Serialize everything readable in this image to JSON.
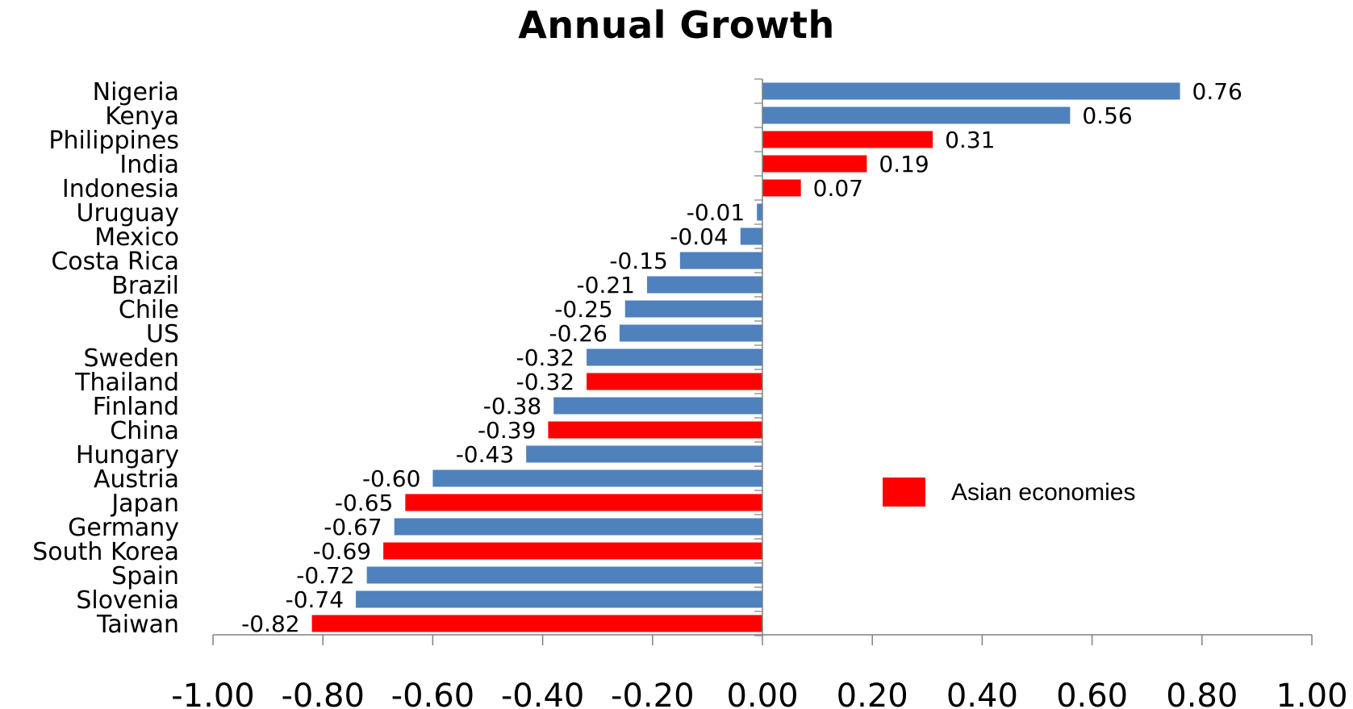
{
  "chart_data": {
    "type": "bar",
    "orientation": "horizontal",
    "title": "Annual Growth",
    "xlabel": "",
    "ylabel": "",
    "xlim": [
      -1.0,
      1.0
    ],
    "xticks": [
      "-1.00",
      "-0.80",
      "-0.60",
      "-0.40",
      "-0.20",
      "0.00",
      "0.20",
      "0.40",
      "0.60",
      "0.80",
      "1.00"
    ],
    "xtick_values": [
      -1.0,
      -0.8,
      -0.6,
      -0.4,
      -0.2,
      0.0,
      0.2,
      0.4,
      0.6,
      0.8,
      1.0
    ],
    "grid": false,
    "categories": [
      "Nigeria",
      "Kenya",
      "Philippines",
      "India",
      "Indonesia",
      "Uruguay",
      "Mexico",
      "Costa Rica",
      "Brazil",
      "Chile",
      "US",
      "Sweden",
      "Thailand",
      "Finland",
      "China",
      "Hungary",
      "Austria",
      "Japan",
      "Germany",
      "South Korea",
      "Spain",
      "Slovenia",
      "Taiwan"
    ],
    "values": [
      0.76,
      0.56,
      0.31,
      0.19,
      0.07,
      -0.01,
      -0.04,
      -0.15,
      -0.21,
      -0.25,
      -0.26,
      -0.32,
      -0.32,
      -0.38,
      -0.39,
      -0.43,
      -0.6,
      -0.65,
      -0.67,
      -0.69,
      -0.72,
      -0.74,
      -0.82
    ],
    "value_labels": [
      "0.76",
      "0.56",
      "0.31",
      "0.19",
      "0.07",
      "-0.01",
      "-0.04",
      "-0.15",
      "-0.21",
      "-0.25",
      "-0.26",
      "-0.32",
      "-0.32",
      "-0.38",
      "-0.39",
      "-0.43",
      "-0.60",
      "-0.65",
      "-0.67",
      "-0.69",
      "-0.72",
      "-0.74",
      "-0.82"
    ],
    "asian": [
      false,
      false,
      true,
      true,
      true,
      false,
      false,
      false,
      false,
      false,
      false,
      false,
      true,
      false,
      true,
      false,
      false,
      true,
      false,
      true,
      false,
      false,
      true
    ],
    "colors": {
      "default": "#4f81bd",
      "highlight": "#ff0000",
      "axis": "#808080",
      "text": "#000000"
    },
    "legend": {
      "position": "right-center",
      "entries": [
        {
          "label": "Asian economies",
          "color": "#ff0000"
        }
      ]
    }
  }
}
